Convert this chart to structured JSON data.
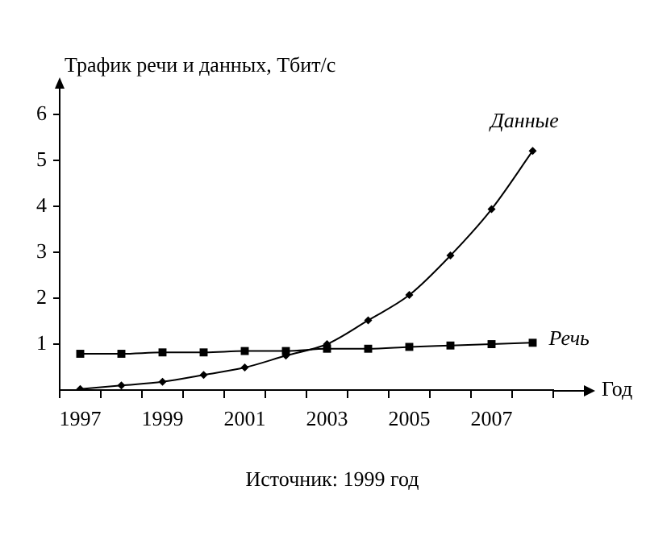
{
  "chart_data": {
    "type": "line",
    "ylabel": "Трафик речи и данных, Тбит/с",
    "xlabel": "Год",
    "categories": [
      "1997",
      null,
      "1999",
      null,
      "2001",
      null,
      "2003",
      null,
      "2005",
      null,
      "2007",
      null
    ],
    "series": [
      {
        "name": "Данные",
        "color": "#000000",
        "marker": "diamond",
        "values": [
          0.02,
          0.1,
          0.18,
          0.33,
          0.49,
          0.75,
          1.0,
          1.52,
          2.07,
          2.93,
          3.94,
          5.21
        ]
      },
      {
        "name": "Речь",
        "color": "#000000",
        "marker": "square",
        "values": [
          0.79,
          0.79,
          0.82,
          0.82,
          0.85,
          0.85,
          0.9,
          0.9,
          0.94,
          0.97,
          1.0,
          1.03
        ]
      }
    ],
    "ylim": [
      0,
      6.6
    ],
    "yticks": [
      1,
      2,
      3,
      4,
      5,
      6
    ],
    "grid": false,
    "legend": false,
    "line_style": "solid",
    "annotations": [
      "Источник: 1999 год"
    ]
  }
}
